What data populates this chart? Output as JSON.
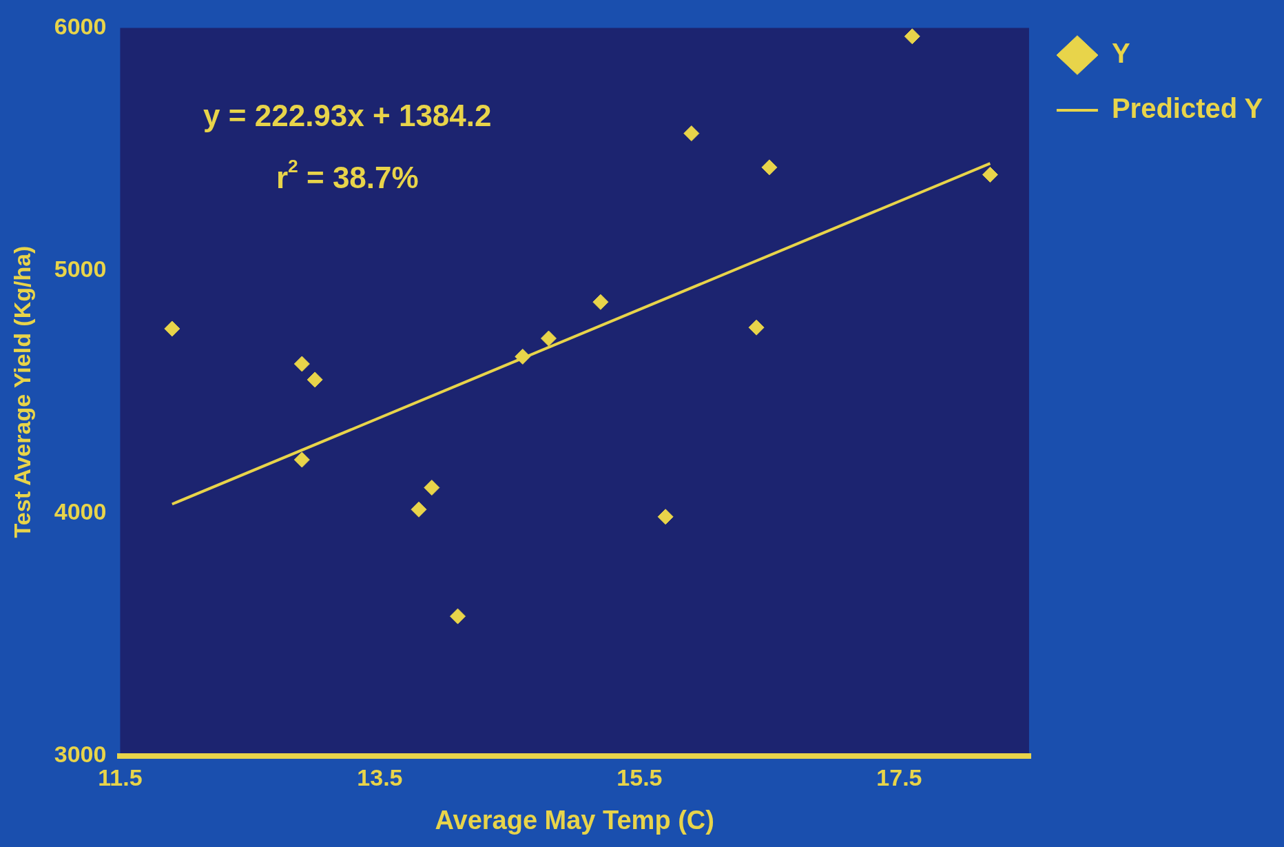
{
  "chart_data": {
    "type": "scatter",
    "xlabel": "Average May Temp (C)",
    "ylabel": "Test Average Yield (Kg/ha)",
    "xlim": [
      11.5,
      18.5
    ],
    "xticks": [
      11.5,
      13.5,
      15.5,
      17.5
    ],
    "ylim": [
      3000,
      6000
    ],
    "yticks": [
      3000,
      4000,
      5000,
      6000
    ],
    "grid": false,
    "legend": "top right",
    "marker": "diamond",
    "annotations": [
      "y = 222.93x + 1384.2",
      "r$^{2}$ = 38.7%"
    ],
    "series": [
      {
        "name": "Y",
        "color": "#e8d44a",
        "x": [
          11.9,
          12.9,
          13.0,
          12.9,
          13.8,
          13.9,
          14.1,
          14.6,
          14.8,
          15.2,
          15.7,
          15.9,
          16.4,
          16.5,
          17.6,
          18.2
        ],
        "values": [
          4760,
          4615,
          4550,
          4220,
          4015,
          4105,
          3575,
          4645,
          4720,
          4870,
          3985,
          5565,
          4765,
          5425,
          5965,
          5395
        ]
      },
      {
        "name": "Predicted Y",
        "type": "line",
        "color": "#e8d44a",
        "marker": "none",
        "x": [
          11.9,
          18.2
        ],
        "values": [
          4037,
          5441
        ]
      }
    ]
  }
}
